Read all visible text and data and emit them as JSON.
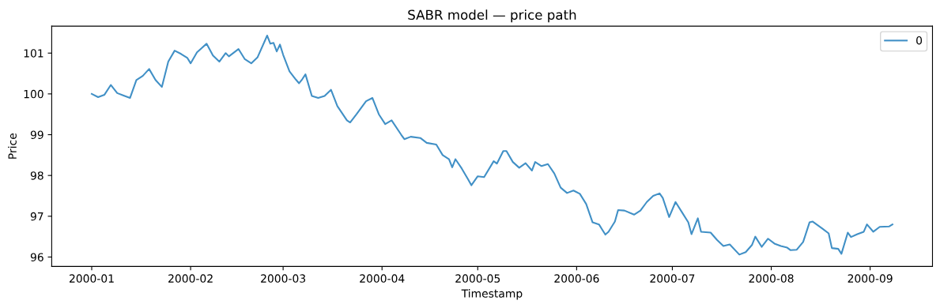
{
  "chart_data": {
    "type": "line",
    "title": "SABR model — price path",
    "xlabel": "Timestamp",
    "ylabel": "Price",
    "x": [
      "2000-01-01",
      "2000-01-03",
      "2000-01-05",
      "2000-01-07",
      "2000-01-09",
      "2000-01-11",
      "2000-01-13",
      "2000-01-15",
      "2000-01-17",
      "2000-01-19",
      "2000-01-21",
      "2000-01-23",
      "2000-01-25",
      "2000-01-27",
      "2000-01-29",
      "2000-01-31",
      "2000-02-01",
      "2000-02-03",
      "2000-02-06",
      "2000-02-08",
      "2000-02-10",
      "2000-02-12",
      "2000-02-13",
      "2000-02-16",
      "2000-02-18",
      "2000-02-20",
      "2000-02-22",
      "2000-02-25",
      "2000-02-26",
      "2000-02-27",
      "2000-02-28",
      "2000-02-29",
      "2000-03-01",
      "2000-03-03",
      "2000-03-05",
      "2000-03-06",
      "2000-03-07",
      "2000-03-08",
      "2000-03-10",
      "2000-03-12",
      "2000-03-14",
      "2000-03-16",
      "2000-03-18",
      "2000-03-21",
      "2000-03-22",
      "2000-03-24",
      "2000-03-27",
      "2000-03-29",
      "2000-03-31",
      "2000-04-02",
      "2000-04-04",
      "2000-04-07",
      "2000-04-08",
      "2000-04-10",
      "2000-04-13",
      "2000-04-15",
      "2000-04-18",
      "2000-04-20",
      "2000-04-22",
      "2000-04-23",
      "2000-04-24",
      "2000-04-26",
      "2000-04-28",
      "2000-04-29",
      "2000-05-01",
      "2000-05-03",
      "2000-05-06",
      "2000-05-07",
      "2000-05-09",
      "2000-05-10",
      "2000-05-12",
      "2000-05-14",
      "2000-05-16",
      "2000-05-18",
      "2000-05-19",
      "2000-05-21",
      "2000-05-23",
      "2000-05-25",
      "2000-05-27",
      "2000-05-29",
      "2000-05-31",
      "2000-06-02",
      "2000-06-04",
      "2000-06-06",
      "2000-06-08",
      "2000-06-10",
      "2000-06-11",
      "2000-06-13",
      "2000-06-14",
      "2000-06-16",
      "2000-06-19",
      "2000-06-21",
      "2000-06-23",
      "2000-06-25",
      "2000-06-27",
      "2000-06-28",
      "2000-06-30",
      "2000-07-02",
      "2000-07-04",
      "2000-07-06",
      "2000-07-07",
      "2000-07-09",
      "2000-07-10",
      "2000-07-13",
      "2000-07-15",
      "2000-07-17",
      "2000-07-19",
      "2000-07-22",
      "2000-07-24",
      "2000-07-26",
      "2000-07-27",
      "2000-07-29",
      "2000-07-31",
      "2000-08-02",
      "2000-08-04",
      "2000-08-06",
      "2000-08-07",
      "2000-08-09",
      "2000-08-11",
      "2000-08-13",
      "2000-08-14",
      "2000-08-17",
      "2000-08-19",
      "2000-08-20",
      "2000-08-22",
      "2000-08-23",
      "2000-08-25",
      "2000-08-26",
      "2000-08-28",
      "2000-08-30",
      "2000-08-31",
      "2000-09-02",
      "2000-09-04",
      "2000-09-07",
      "2000-09-08"
    ],
    "series": [
      {
        "name": "0",
        "color": "#4190c6",
        "values": [
          100.0,
          99.92,
          99.98,
          100.22,
          100.02,
          99.96,
          99.9,
          100.34,
          100.44,
          100.61,
          100.34,
          100.17,
          100.79,
          101.06,
          100.98,
          100.88,
          100.75,
          101.02,
          101.23,
          100.94,
          100.79,
          101.0,
          100.92,
          101.1,
          100.85,
          100.75,
          100.9,
          101.43,
          101.23,
          101.25,
          101.04,
          101.21,
          100.96,
          100.55,
          100.35,
          100.26,
          100.36,
          100.48,
          99.95,
          99.9,
          99.95,
          100.1,
          99.7,
          99.35,
          99.3,
          99.5,
          99.82,
          99.9,
          99.5,
          99.26,
          99.35,
          99.0,
          98.89,
          98.95,
          98.92,
          98.8,
          98.76,
          98.5,
          98.4,
          98.2,
          98.4,
          98.17,
          97.9,
          97.76,
          97.98,
          97.96,
          98.35,
          98.29,
          98.6,
          98.6,
          98.33,
          98.19,
          98.3,
          98.12,
          98.33,
          98.23,
          98.28,
          98.05,
          97.7,
          97.57,
          97.63,
          97.55,
          97.3,
          96.85,
          96.8,
          96.55,
          96.62,
          96.87,
          97.15,
          97.14,
          97.04,
          97.14,
          97.35,
          97.5,
          97.56,
          97.45,
          96.98,
          97.35,
          97.1,
          96.85,
          96.56,
          96.95,
          96.62,
          96.6,
          96.42,
          96.27,
          96.31,
          96.06,
          96.12,
          96.3,
          96.5,
          96.25,
          96.45,
          96.33,
          96.27,
          96.23,
          96.17,
          96.18,
          96.37,
          96.85,
          96.87,
          96.7,
          96.58,
          96.22,
          96.2,
          96.08,
          96.6,
          96.49,
          96.56,
          96.62,
          96.8,
          96.62,
          96.74,
          96.75,
          96.8
        ]
      }
    ],
    "xlim": [
      "1999-12-19T11:00",
      "2000-09-20T13:00"
    ],
    "xticks": [
      {
        "value": "2000-01-01",
        "label": "2000-01"
      },
      {
        "value": "2000-02-01",
        "label": "2000-02"
      },
      {
        "value": "2000-03-01",
        "label": "2000-03"
      },
      {
        "value": "2000-04-01",
        "label": "2000-04"
      },
      {
        "value": "2000-05-01",
        "label": "2000-05"
      },
      {
        "value": "2000-06-01",
        "label": "2000-06"
      },
      {
        "value": "2000-07-01",
        "label": "2000-07"
      },
      {
        "value": "2000-08-01",
        "label": "2000-08"
      },
      {
        "value": "2000-09-01",
        "label": "2000-09"
      }
    ],
    "ylim": [
      95.77,
      101.66
    ],
    "yticks": [
      96,
      97,
      98,
      99,
      100,
      101
    ],
    "legend": "top right",
    "marker": "none",
    "line_style": "solid"
  }
}
